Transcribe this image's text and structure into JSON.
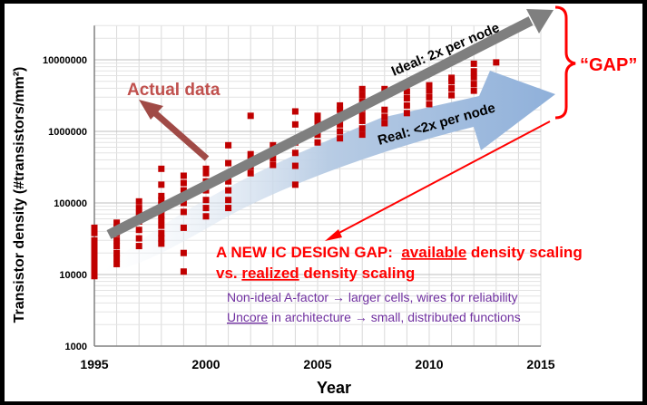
{
  "chart_data": {
    "type": "scatter",
    "xlabel": "Year",
    "ylabel": "Transistor density (#transistors/mm²)",
    "xlim": [
      1995,
      2015
    ],
    "ylim": [
      1000,
      30000000
    ],
    "y_scale": "log",
    "grid": true,
    "x_ticks": [
      {
        "v": 1995,
        "label": "1995"
      },
      {
        "v": 2000,
        "label": "2000"
      },
      {
        "v": 2005,
        "label": "2005"
      },
      {
        "v": 2010,
        "label": "2010"
      },
      {
        "v": 2015,
        "label": "2015"
      }
    ],
    "y_ticks": [
      {
        "v": 1000,
        "label": "1000"
      },
      {
        "v": 10000,
        "label": "10000"
      },
      {
        "v": 100000,
        "label": "100000"
      },
      {
        "v": 1000000,
        "label": "1000000"
      },
      {
        "v": 10000000,
        "label": "10000000"
      }
    ],
    "points": [
      [
        1995,
        9500
      ],
      [
        1995,
        11000
      ],
      [
        1995,
        13000
      ],
      [
        1995,
        15000
      ],
      [
        1995,
        18000
      ],
      [
        1995,
        21000
      ],
      [
        1995,
        25000
      ],
      [
        1995,
        30000
      ],
      [
        1995,
        38000
      ],
      [
        1995,
        45000
      ],
      [
        1996,
        14000
      ],
      [
        1996,
        17000
      ],
      [
        1996,
        20000
      ],
      [
        1996,
        25000
      ],
      [
        1996,
        30000
      ],
      [
        1996,
        37000
      ],
      [
        1996,
        45000
      ],
      [
        1996,
        53000
      ],
      [
        1997,
        25000
      ],
      [
        1997,
        32000
      ],
      [
        1997,
        42000
      ],
      [
        1997,
        55000
      ],
      [
        1997,
        70000
      ],
      [
        1997,
        85000
      ],
      [
        1997,
        105000
      ],
      [
        1998,
        27000
      ],
      [
        1998,
        32000
      ],
      [
        1998,
        38000
      ],
      [
        1998,
        48000
      ],
      [
        1998,
        58000
      ],
      [
        1998,
        68000
      ],
      [
        1998,
        80000
      ],
      [
        1998,
        95000
      ],
      [
        1998,
        110000
      ],
      [
        1998,
        125000
      ],
      [
        1998,
        180000
      ],
      [
        1998,
        300000
      ],
      [
        1999,
        11000
      ],
      [
        1999,
        20000
      ],
      [
        1999,
        45000
      ],
      [
        1999,
        75000
      ],
      [
        1999,
        100000
      ],
      [
        1999,
        150000
      ],
      [
        1999,
        190000
      ],
      [
        1999,
        240000
      ],
      [
        2000,
        65000
      ],
      [
        2000,
        85000
      ],
      [
        2000,
        110000
      ],
      [
        2000,
        150000
      ],
      [
        2000,
        200000
      ],
      [
        2000,
        260000
      ],
      [
        2000,
        300000
      ],
      [
        2001,
        85000
      ],
      [
        2001,
        110000
      ],
      [
        2001,
        150000
      ],
      [
        2001,
        200000
      ],
      [
        2001,
        250000
      ],
      [
        2001,
        360000
      ],
      [
        2001,
        640000
      ],
      [
        2002,
        260000
      ],
      [
        2002,
        320000
      ],
      [
        2002,
        400000
      ],
      [
        2002,
        480000
      ],
      [
        2002,
        1650000
      ],
      [
        2003,
        340000
      ],
      [
        2003,
        420000
      ],
      [
        2003,
        520000
      ],
      [
        2003,
        640000
      ],
      [
        2004,
        180000
      ],
      [
        2004,
        330000
      ],
      [
        2004,
        500000
      ],
      [
        2004,
        700000
      ],
      [
        2004,
        1250000
      ],
      [
        2004,
        1900000
      ],
      [
        2005,
        700000
      ],
      [
        2005,
        900000
      ],
      [
        2005,
        1150000
      ],
      [
        2005,
        1400000
      ],
      [
        2005,
        1650000
      ],
      [
        2006,
        800000
      ],
      [
        2006,
        1000000
      ],
      [
        2006,
        1250000
      ],
      [
        2006,
        1550000
      ],
      [
        2006,
        2000000
      ],
      [
        2006,
        2300000
      ],
      [
        2007,
        900000
      ],
      [
        2007,
        1100000
      ],
      [
        2007,
        1400000
      ],
      [
        2007,
        1700000
      ],
      [
        2007,
        2100000
      ],
      [
        2007,
        2600000
      ],
      [
        2007,
        3200000
      ],
      [
        2007,
        3900000
      ],
      [
        2008,
        1300000
      ],
      [
        2008,
        1600000
      ],
      [
        2008,
        2000000
      ],
      [
        2008,
        3900000
      ],
      [
        2009,
        1800000
      ],
      [
        2009,
        2300000
      ],
      [
        2009,
        2900000
      ],
      [
        2009,
        3600000
      ],
      [
        2010,
        2400000
      ],
      [
        2010,
        3000000
      ],
      [
        2010,
        3700000
      ],
      [
        2010,
        4400000
      ],
      [
        2011,
        3200000
      ],
      [
        2011,
        4000000
      ],
      [
        2011,
        5000000
      ],
      [
        2011,
        5600000
      ],
      [
        2012,
        3700000
      ],
      [
        2012,
        4600000
      ],
      [
        2012,
        5700000
      ],
      [
        2012,
        6900000
      ],
      [
        2012,
        8800000
      ],
      [
        2013,
        9200000
      ]
    ],
    "annotations": {
      "actual": "Actual data",
      "ideal": "Ideal: 2x per node",
      "real": "Real: <2x per node",
      "gap": "“GAP”",
      "headline_line1_pre": "A NEW IC DESIGN GAP:  ",
      "headline_line1_u": "available",
      "headline_line1_post": " density scaling",
      "headline_line2_pre": "vs. ",
      "headline_line2_u": "realized",
      "headline_line2_post": " density scaling",
      "note1": "Non-ideal A-factor → larger cells, wires for reliability",
      "note2_u": "Uncore",
      "note2_post": " in architecture → small, distributed functions"
    },
    "colors": {
      "points": "#c00000",
      "ideal_arrow": "#7f7f7f",
      "real_arrow": "#b8cce4",
      "actual_text": "#c0504d",
      "gap": "#ff0000",
      "notes": "#7030a0"
    }
  }
}
